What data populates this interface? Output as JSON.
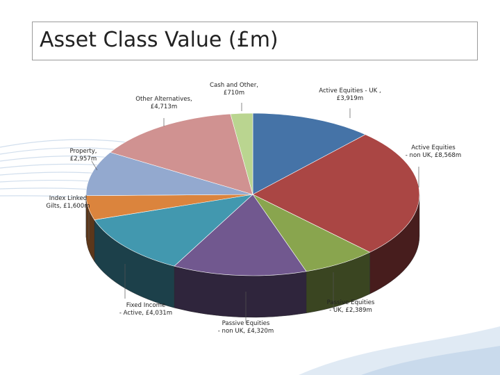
{
  "title": "Asset Class Value (£m)",
  "chart_data": {
    "type": "pie",
    "title": "Asset Class Value (£m)",
    "three_d": true,
    "slices": [
      {
        "name": "Active Equities - UK",
        "value": 3919,
        "label": [
          "Active Equities - UK ,",
          "£3,919m"
        ],
        "color": "#4573a7"
      },
      {
        "name": "Active Equities - non UK",
        "value": 8568,
        "label": [
          "Active Equities",
          "- non UK, £8,568m"
        ],
        "color": "#aa4644"
      },
      {
        "name": "Passive Equities - UK",
        "value": 2389,
        "label": [
          "Passive Equities",
          "- UK, £2,389m"
        ],
        "color": "#89a54e"
      },
      {
        "name": "Passive Equities - non UK",
        "value": 4320,
        "label": [
          "Passive Equities",
          "- non UK, £4,320m"
        ],
        "color": "#71588f"
      },
      {
        "name": "Fixed Income - Active",
        "value": 4031,
        "label": [
          "Fixed Income",
          "- Active, £4,031m"
        ],
        "color": "#4298af"
      },
      {
        "name": "Index Linked Gilts",
        "value": 1600,
        "label": [
          "Index Linked",
          "Gilts, £1,600m"
        ],
        "color": "#db843d"
      },
      {
        "name": "Property",
        "value": 2957,
        "label": [
          "Property,",
          "£2,957m"
        ],
        "color": "#93a9cf"
      },
      {
        "name": "Other Alternatives",
        "value": 4713,
        "label": [
          "Other Alternatives,",
          "£4,713m"
        ],
        "color": "#d09291"
      },
      {
        "name": "Cash and Other",
        "value": 710,
        "label": [
          "Cash and Other,",
          "£710m"
        ],
        "color": "#bad590"
      }
    ]
  }
}
